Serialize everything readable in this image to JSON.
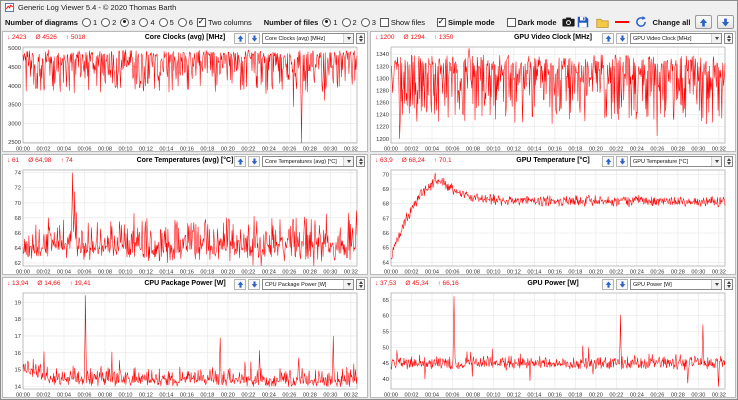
{
  "window": {
    "title": "Generic Log Viewer 5.4  -  © 2020 Thomas Barth"
  },
  "toolbar": {
    "number_of_diagrams": {
      "label": "Number of diagrams",
      "options": [
        "1",
        "2",
        "3",
        "4",
        "5",
        "6"
      ],
      "selected": "3"
    },
    "two_columns": {
      "label": "Two columns",
      "checked": true
    },
    "number_of_files": {
      "label": "Number of files",
      "options": [
        "1",
        "2",
        "3"
      ],
      "selected": "1"
    },
    "show_files": {
      "label": "Show files",
      "checked": false
    },
    "simple_mode": {
      "label": "Simple mode",
      "checked": true
    },
    "dark_mode": {
      "label": "Dark mode",
      "checked": false
    },
    "change_all_label": "Change all",
    "icons": {
      "screenshot": "camera-icon",
      "save": "floppy-disk-icon",
      "open": "folder-icon",
      "line_color": "red-line-swatch",
      "refresh": "refresh-arrows-icon",
      "up": "arrow-up-icon",
      "down": "arrow-down-icon"
    }
  },
  "chart_symbols": {
    "min": "↓",
    "avg": "Ø",
    "max": "↑"
  },
  "colors": {
    "series": "#ff0000",
    "stats": "#ee1111",
    "accent_blue": "#2a62c9",
    "grid": "#e6e6e6",
    "frame": "#b0b0b0"
  },
  "chart_data": [
    {
      "type": "line",
      "seed": 7,
      "title": "Core Clocks (avg) [MHz]",
      "selector": "Core Clocks (avg) [MHz]",
      "stats": {
        "min": "2423",
        "avg": "4526",
        "max": "5018"
      },
      "ylim": [
        2480,
        5030
      ],
      "yticks": [
        2500,
        3000,
        3500,
        4000,
        4500,
        5000
      ],
      "xmax": 32.6,
      "xticks": [
        "00:00",
        "00:02",
        "00:04",
        "00:06",
        "00:08",
        "00:10",
        "00:12",
        "00:14",
        "00:16",
        "00:18",
        "00:20",
        "00:22",
        "00:24",
        "00:26",
        "00:28",
        "00:30",
        "00:32"
      ],
      "model": {
        "profile": [
          [
            0,
            4820
          ],
          [
            32.6,
            4820
          ]
        ],
        "up": 140,
        "up_pow": 1.2,
        "down": 1050,
        "down_pow": 2.2,
        "rare_dip": 500,
        "rare_dip_p": 0.02,
        "rare_spike": 0,
        "rare_spike_p": 0,
        "spikes": [
          [
            27.2,
            2423
          ]
        ]
      }
    },
    {
      "type": "line",
      "seed": 13,
      "title": "GPU Video Clock [MHz]",
      "selector": "GPU Video Clock [MHz]",
      "stats": {
        "min": "1200",
        "avg": "1294",
        "max": "1350"
      },
      "ylim": [
        1193,
        1352
      ],
      "yticks": [
        1200,
        1220,
        1240,
        1260,
        1280,
        1300,
        1320,
        1340
      ],
      "xmax": 32.6,
      "xticks": [
        "00:00",
        "00:02",
        "00:04",
        "00:06",
        "00:08",
        "00:10",
        "00:12",
        "00:14",
        "00:16",
        "00:18",
        "00:20",
        "00:22",
        "00:24",
        "00:26",
        "00:28",
        "00:30",
        "00:32"
      ],
      "model": {
        "profile": [
          [
            0,
            1323
          ],
          [
            32.6,
            1323
          ]
        ],
        "up": 18,
        "up_pow": 1.0,
        "down": 105,
        "down_pow": 2.1,
        "rare_dip": 45,
        "rare_dip_p": 0.02,
        "rare_spike": 0,
        "rare_spike_p": 0,
        "spikes": [
          [
            0.85,
            1200
          ],
          [
            7.6,
            1350
          ]
        ]
      }
    },
    {
      "type": "line",
      "seed": 21,
      "title": "Core Temperatures (avg) [°C]",
      "selector": "Core Temperatures (avg) [°C]",
      "stats": {
        "min": "61",
        "avg": "64,98",
        "max": "74"
      },
      "ylim": [
        61.6,
        74.35
      ],
      "yticks": [
        62,
        64,
        66,
        68,
        70,
        72,
        74
      ],
      "xmax": 32.6,
      "xticks": [
        "00:00",
        "00:02",
        "00:04",
        "00:06",
        "00:08",
        "00:10",
        "00:12",
        "00:14",
        "00:16",
        "00:18",
        "00:20",
        "00:22",
        "00:24",
        "00:26",
        "00:28",
        "00:30",
        "00:32"
      ],
      "model": {
        "profile": [
          [
            0,
            64.2
          ],
          [
            32.6,
            64.2
          ]
        ],
        "up": 4.6,
        "up_pow": 2.4,
        "down": 2.0,
        "down_pow": 1.4,
        "rare_dip": 1.5,
        "rare_dip_p": 0.04,
        "rare_spike": 3.2,
        "rare_spike_p": 0.03,
        "spikes": [
          [
            4.85,
            74
          ],
          [
            5.05,
            71.5
          ]
        ]
      }
    },
    {
      "type": "line",
      "seed": 5,
      "title": "GPU Temperature [°C]",
      "selector": "GPU Temperature [°C]",
      "stats": {
        "min": "63,9",
        "avg": "68,24",
        "max": "70,1"
      },
      "ylim": [
        63.75,
        70.3
      ],
      "yticks": [
        64,
        65,
        66,
        67,
        68,
        69,
        70
      ],
      "xmax": 32.6,
      "xticks": [
        "00:00",
        "00:02",
        "00:04",
        "00:06",
        "00:08",
        "00:10",
        "00:12",
        "00:14",
        "00:16",
        "00:18",
        "00:20",
        "00:22",
        "00:24",
        "00:26",
        "00:28",
        "00:30",
        "00:32"
      ],
      "model": {
        "profile": [
          [
            0,
            64.3
          ],
          [
            0.3,
            64.9
          ],
          [
            1,
            66.2
          ],
          [
            2,
            67.6
          ],
          [
            3,
            68.7
          ],
          [
            4,
            69.3
          ],
          [
            4.8,
            69.5
          ],
          [
            5.5,
            69.2
          ],
          [
            6.5,
            68.8
          ],
          [
            8,
            68.4
          ],
          [
            10,
            68.25
          ],
          [
            32.6,
            68.15
          ]
        ],
        "up": 0.45,
        "up_pow": 1.0,
        "down": 0.45,
        "down_pow": 1.0,
        "rare_dip": 0,
        "rare_dip_p": 0,
        "rare_spike": 0,
        "rare_spike_p": 0,
        "spikes": [
          [
            4.3,
            70.1
          ]
        ]
      }
    },
    {
      "type": "line",
      "seed": 42,
      "title": "CPU Package Power [W]",
      "selector": "CPU Package Power [W]",
      "stats": {
        "min": "13,94",
        "avg": "14,66",
        "max": "19,41"
      },
      "ylim": [
        13.85,
        19.55
      ],
      "yticks": [
        14,
        15,
        16,
        17,
        18,
        19
      ],
      "xmax": 32.6,
      "xticks": [
        "00:00",
        "00:02",
        "00:04",
        "00:06",
        "00:08",
        "00:10",
        "00:12",
        "00:14",
        "00:16",
        "00:18",
        "00:20",
        "00:22",
        "00:24",
        "00:26",
        "00:28",
        "00:30",
        "00:32"
      ],
      "model": {
        "profile": [
          [
            0,
            15.1
          ],
          [
            1,
            14.95
          ],
          [
            2,
            14.6
          ],
          [
            3,
            14.45
          ],
          [
            32.6,
            14.38
          ]
        ],
        "up": 0.85,
        "up_pow": 2.6,
        "down": 0.42,
        "down_pow": 1.2,
        "rare_dip": 0,
        "rare_dip_p": 0,
        "rare_spike": 1.4,
        "rare_spike_p": 0.03,
        "spikes": [
          [
            6.1,
            19.41
          ],
          [
            19.25,
            16.9
          ],
          [
            23.1,
            16.15
          ],
          [
            26.9,
            15.7
          ],
          [
            30.3,
            17.0
          ]
        ]
      }
    },
    {
      "type": "line",
      "seed": 99,
      "title": "GPU Power [W]",
      "selector": "GPU Power [W]",
      "stats": {
        "min": "37,53",
        "avg": "45,34",
        "max": "66,16"
      },
      "ylim": [
        36.8,
        67.2
      ],
      "yticks": [
        40,
        45,
        50,
        55,
        60,
        65
      ],
      "xmax": 32.6,
      "xticks": [
        "00:00",
        "00:02",
        "00:04",
        "00:06",
        "00:08",
        "00:10",
        "00:12",
        "00:14",
        "00:16",
        "00:18",
        "00:20",
        "00:22",
        "00:24",
        "00:26",
        "00:28",
        "00:30",
        "00:32"
      ],
      "model": {
        "profile": [
          [
            0,
            45.1
          ],
          [
            32.6,
            45.0
          ]
        ],
        "up": 2.6,
        "up_pow": 2.0,
        "down": 2.1,
        "down_pow": 1.2,
        "rare_dip": 4.5,
        "rare_dip_p": 0.02,
        "rare_spike": 5,
        "rare_spike_p": 0.03,
        "spikes": [
          [
            6.15,
            66.16
          ],
          [
            22.4,
            60.3
          ],
          [
            28.95,
            38.6
          ],
          [
            30.45,
            57.2
          ],
          [
            31.95,
            37.53
          ]
        ]
      }
    }
  ]
}
